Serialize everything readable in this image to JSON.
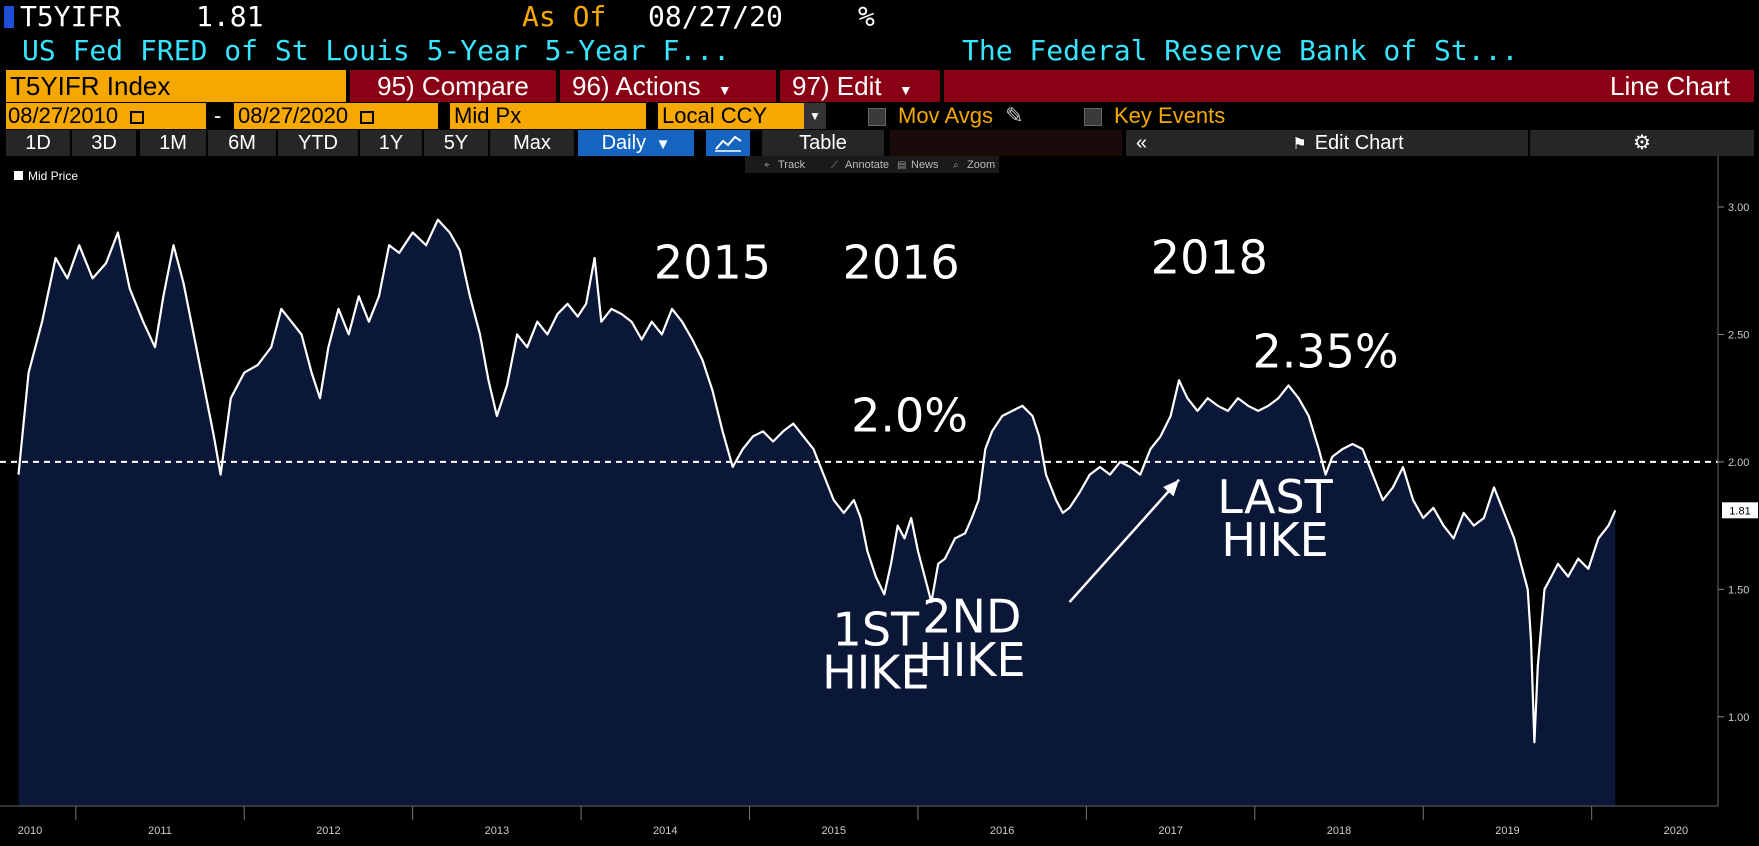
{
  "header": {
    "ticker": "T5YIFR",
    "last_value": "1.81",
    "as_of_label": "As Of",
    "as_of_date": "08/27/20",
    "unit": "%",
    "description": "US Fed FRED of St Louis 5-Year 5-Year F...",
    "source": "The Federal Reserve Bank of St..."
  },
  "menu": {
    "security": "T5YIFR Index",
    "compare": "95) Compare",
    "actions": "96) Actions",
    "edit": "97) Edit",
    "chart_type": "Line Chart"
  },
  "controls": {
    "start_date": "08/27/2010",
    "dash": "-",
    "end_date": "08/27/2020",
    "field": "Mid Px",
    "currency": "Local CCY",
    "mov_avgs": "Mov Avgs",
    "key_events": "Key Events"
  },
  "toolbar": {
    "ranges": [
      "1D",
      "3D",
      "1M",
      "6M",
      "YTD",
      "1Y",
      "5Y",
      "Max"
    ],
    "frequency": "Daily",
    "table": "Table",
    "edit_chart": "Edit Chart",
    "tools": [
      "Track",
      "Annotate",
      "News",
      "Zoom"
    ]
  },
  "colors": {
    "orange": "#f6a800",
    "cyan": "#38e5ff",
    "red": "#8a0014",
    "blue": "#1565c0",
    "area_fill": "#0b1736",
    "line": "#ffffff"
  },
  "chart_data": {
    "type": "area",
    "legend": "Mid Price",
    "legend_position": "top-left",
    "x_ticks": [
      "2010",
      "2011",
      "2012",
      "2013",
      "2014",
      "2015",
      "2016",
      "2017",
      "2018",
      "2019",
      "2020"
    ],
    "y_ticks": [
      "3.00",
      "2.50",
      "2.00",
      "1.50",
      "1.00"
    ],
    "ylim": [
      0.65,
      3.2
    ],
    "xlim": [
      2010.55,
      2020.75
    ],
    "reference_line": 2.0,
    "last_value_label": "1.81",
    "series": [
      {
        "values": [
          [
            2010.66,
            1.95
          ],
          [
            2010.72,
            2.35
          ],
          [
            2010.8,
            2.55
          ],
          [
            2010.88,
            2.8
          ],
          [
            2010.95,
            2.72
          ],
          [
            2011.02,
            2.85
          ],
          [
            2011.1,
            2.72
          ],
          [
            2011.18,
            2.78
          ],
          [
            2011.25,
            2.9
          ],
          [
            2011.32,
            2.68
          ],
          [
            2011.4,
            2.55
          ],
          [
            2011.47,
            2.45
          ],
          [
            2011.52,
            2.65
          ],
          [
            2011.58,
            2.85
          ],
          [
            2011.64,
            2.7
          ],
          [
            2011.7,
            2.5
          ],
          [
            2011.76,
            2.3
          ],
          [
            2011.82,
            2.1
          ],
          [
            2011.86,
            1.95
          ],
          [
            2011.92,
            2.25
          ],
          [
            2012.0,
            2.35
          ],
          [
            2012.08,
            2.38
          ],
          [
            2012.16,
            2.45
          ],
          [
            2012.22,
            2.6
          ],
          [
            2012.28,
            2.55
          ],
          [
            2012.34,
            2.5
          ],
          [
            2012.4,
            2.35
          ],
          [
            2012.45,
            2.25
          ],
          [
            2012.5,
            2.45
          ],
          [
            2012.56,
            2.6
          ],
          [
            2012.62,
            2.5
          ],
          [
            2012.68,
            2.65
          ],
          [
            2012.74,
            2.55
          ],
          [
            2012.8,
            2.65
          ],
          [
            2012.86,
            2.85
          ],
          [
            2012.92,
            2.82
          ],
          [
            2013.0,
            2.9
          ],
          [
            2013.08,
            2.85
          ],
          [
            2013.15,
            2.95
          ],
          [
            2013.22,
            2.9
          ],
          [
            2013.28,
            2.83
          ],
          [
            2013.34,
            2.65
          ],
          [
            2013.4,
            2.5
          ],
          [
            2013.45,
            2.32
          ],
          [
            2013.5,
            2.18
          ],
          [
            2013.56,
            2.3
          ],
          [
            2013.62,
            2.5
          ],
          [
            2013.68,
            2.45
          ],
          [
            2013.74,
            2.55
          ],
          [
            2013.8,
            2.5
          ],
          [
            2013.86,
            2.58
          ],
          [
            2013.92,
            2.62
          ],
          [
            2013.98,
            2.57
          ],
          [
            2014.03,
            2.62
          ],
          [
            2014.08,
            2.8
          ],
          [
            2014.12,
            2.55
          ],
          [
            2014.18,
            2.6
          ],
          [
            2014.24,
            2.58
          ],
          [
            2014.3,
            2.55
          ],
          [
            2014.36,
            2.48
          ],
          [
            2014.42,
            2.55
          ],
          [
            2014.48,
            2.5
          ],
          [
            2014.54,
            2.6
          ],
          [
            2014.6,
            2.55
          ],
          [
            2014.66,
            2.48
          ],
          [
            2014.72,
            2.4
          ],
          [
            2014.78,
            2.28
          ],
          [
            2014.84,
            2.12
          ],
          [
            2014.9,
            1.98
          ],
          [
            2014.96,
            2.05
          ],
          [
            2015.02,
            2.1
          ],
          [
            2015.08,
            2.12
          ],
          [
            2015.14,
            2.08
          ],
          [
            2015.2,
            2.12
          ],
          [
            2015.26,
            2.15
          ],
          [
            2015.32,
            2.1
          ],
          [
            2015.38,
            2.05
          ],
          [
            2015.44,
            1.95
          ],
          [
            2015.5,
            1.85
          ],
          [
            2015.56,
            1.8
          ],
          [
            2015.62,
            1.85
          ],
          [
            2015.66,
            1.78
          ],
          [
            2015.7,
            1.65
          ],
          [
            2015.75,
            1.55
          ],
          [
            2015.8,
            1.48
          ],
          [
            2015.84,
            1.6
          ],
          [
            2015.88,
            1.75
          ],
          [
            2015.92,
            1.7
          ],
          [
            2015.96,
            1.78
          ],
          [
            2016.0,
            1.65
          ],
          [
            2016.04,
            1.55
          ],
          [
            2016.08,
            1.45
          ],
          [
            2016.12,
            1.6
          ],
          [
            2016.16,
            1.62
          ],
          [
            2016.22,
            1.7
          ],
          [
            2016.28,
            1.72
          ],
          [
            2016.32,
            1.78
          ],
          [
            2016.36,
            1.85
          ],
          [
            2016.4,
            2.05
          ],
          [
            2016.44,
            2.12
          ],
          [
            2016.5,
            2.18
          ],
          [
            2016.56,
            2.2
          ],
          [
            2016.62,
            2.22
          ],
          [
            2016.68,
            2.18
          ],
          [
            2016.72,
            2.1
          ],
          [
            2016.76,
            1.95
          ],
          [
            2016.82,
            1.85
          ],
          [
            2016.86,
            1.8
          ],
          [
            2016.9,
            1.82
          ],
          [
            2016.96,
            1.88
          ],
          [
            2017.02,
            1.95
          ],
          [
            2017.08,
            1.98
          ],
          [
            2017.14,
            1.95
          ],
          [
            2017.2,
            2.0
          ],
          [
            2017.26,
            1.98
          ],
          [
            2017.32,
            1.95
          ],
          [
            2017.38,
            2.05
          ],
          [
            2017.44,
            2.1
          ],
          [
            2017.5,
            2.18
          ],
          [
            2017.55,
            2.32
          ],
          [
            2017.6,
            2.25
          ],
          [
            2017.66,
            2.2
          ],
          [
            2017.72,
            2.25
          ],
          [
            2017.78,
            2.22
          ],
          [
            2017.84,
            2.2
          ],
          [
            2017.9,
            2.25
          ],
          [
            2017.96,
            2.22
          ],
          [
            2018.02,
            2.2
          ],
          [
            2018.08,
            2.22
          ],
          [
            2018.14,
            2.25
          ],
          [
            2018.2,
            2.3
          ],
          [
            2018.26,
            2.25
          ],
          [
            2018.32,
            2.18
          ],
          [
            2018.38,
            2.05
          ],
          [
            2018.42,
            1.95
          ],
          [
            2018.46,
            2.02
          ],
          [
            2018.52,
            2.05
          ],
          [
            2018.58,
            2.07
          ],
          [
            2018.64,
            2.05
          ],
          [
            2018.7,
            1.95
          ],
          [
            2018.76,
            1.85
          ],
          [
            2018.82,
            1.9
          ],
          [
            2018.88,
            1.98
          ],
          [
            2018.94,
            1.85
          ],
          [
            2019.0,
            1.78
          ],
          [
            2019.06,
            1.82
          ],
          [
            2019.12,
            1.75
          ],
          [
            2019.18,
            1.7
          ],
          [
            2019.24,
            1.8
          ],
          [
            2019.3,
            1.75
          ],
          [
            2019.36,
            1.78
          ],
          [
            2019.42,
            1.9
          ],
          [
            2019.48,
            1.8
          ],
          [
            2019.54,
            1.7
          ],
          [
            2019.58,
            1.6
          ],
          [
            2019.62,
            1.5
          ],
          [
            2019.64,
            1.3
          ],
          [
            2019.66,
            0.9
          ],
          [
            2019.68,
            1.2
          ],
          [
            2019.72,
            1.5
          ],
          [
            2019.76,
            1.55
          ],
          [
            2019.8,
            1.6
          ],
          [
            2019.86,
            1.55
          ],
          [
            2019.92,
            1.62
          ],
          [
            2019.98,
            1.58
          ],
          [
            2020.04,
            1.7
          ],
          [
            2020.1,
            1.75
          ],
          [
            2020.14,
            1.81
          ]
        ]
      }
    ],
    "annotations": [
      {
        "text": "2015",
        "x": 2014.78,
        "y": 2.72
      },
      {
        "text": "2016",
        "x": 2015.9,
        "y": 2.72
      },
      {
        "text": "2018",
        "x": 2017.73,
        "y": 2.74
      },
      {
        "text": "2.0%",
        "x": 2015.95,
        "y": 2.12
      },
      {
        "text": "2.35%",
        "x": 2018.42,
        "y": 2.37
      },
      {
        "text": "1ST",
        "x": 2015.75,
        "y": 1.28
      },
      {
        "text": "HIKE",
        "x": 2015.75,
        "y": 1.11
      },
      {
        "text": "2ND",
        "x": 2016.32,
        "y": 1.33
      },
      {
        "text": "HIKE",
        "x": 2016.32,
        "y": 1.16
      },
      {
        "text": "LAST",
        "x": 2018.12,
        "y": 1.8
      },
      {
        "text": "HIKE",
        "x": 2018.12,
        "y": 1.63
      }
    ],
    "arrow": {
      "from": [
        2016.9,
        1.45
      ],
      "to": [
        2017.55,
        1.93
      ]
    }
  }
}
